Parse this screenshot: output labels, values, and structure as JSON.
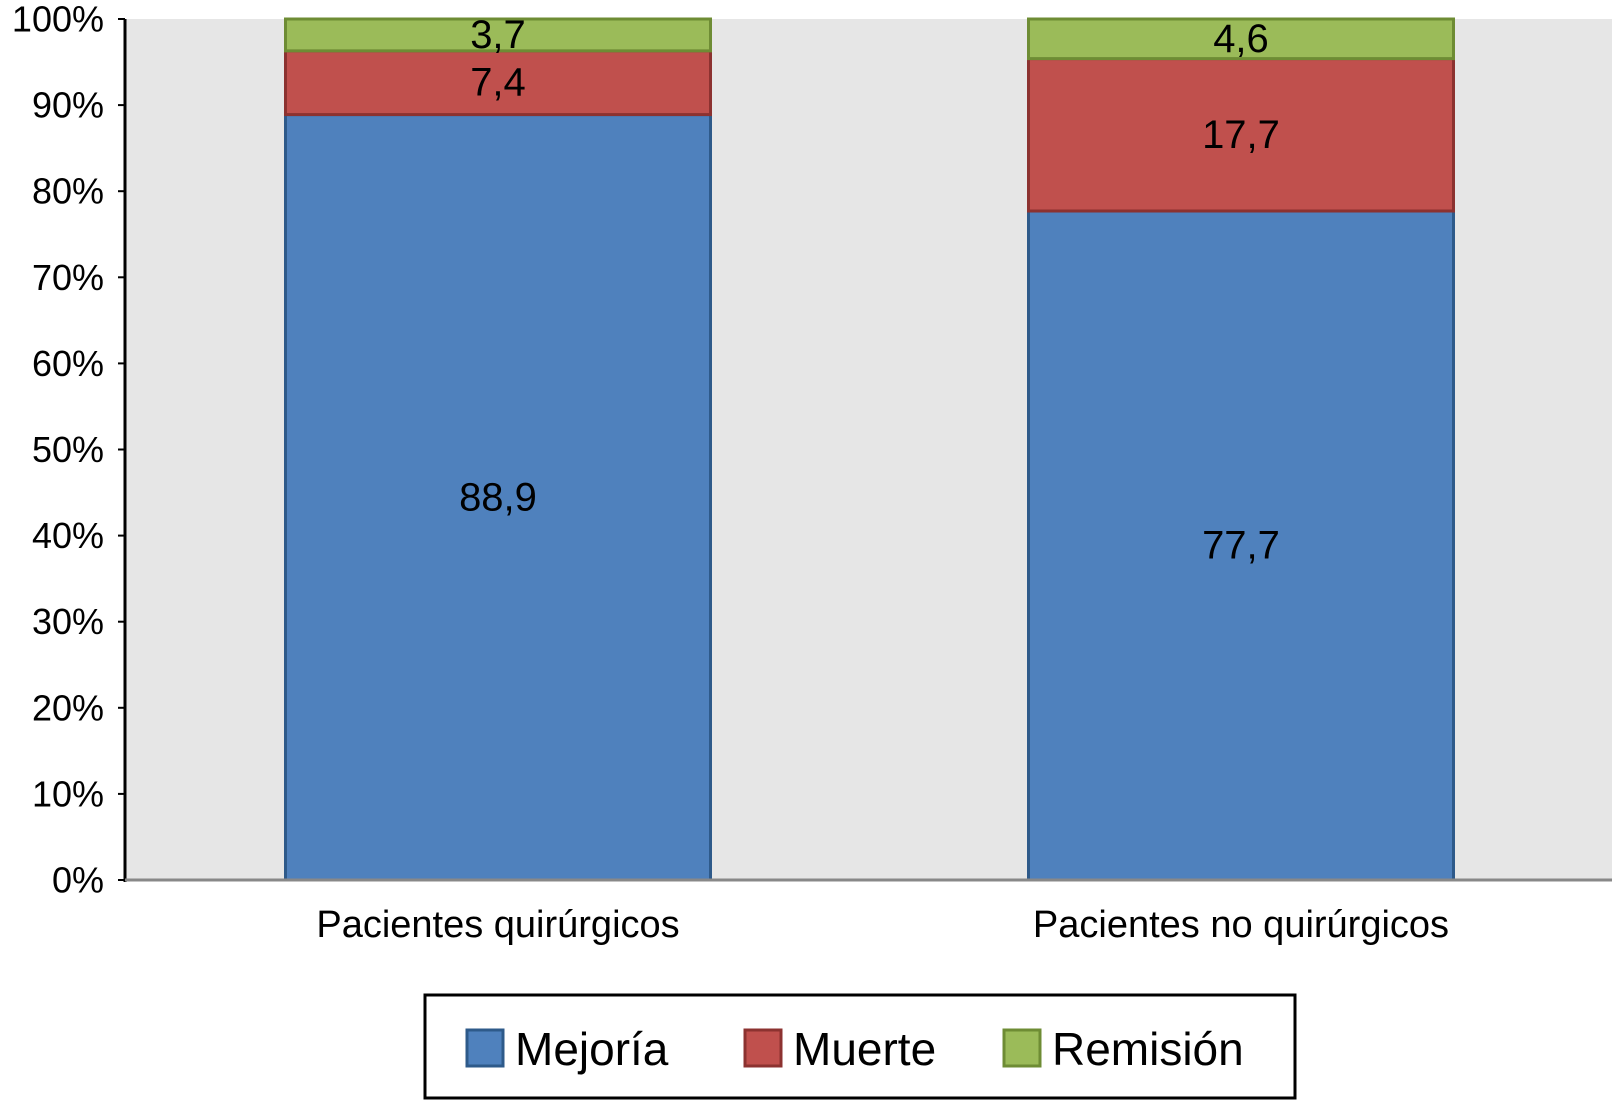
{
  "chart_data": {
    "type": "bar",
    "stacked": true,
    "percent_stacked": true,
    "categories": [
      "Pacientes quirúrgicos",
      "Pacientes no quirúrgicos"
    ],
    "series": [
      {
        "name": "Mejoría",
        "values": [
          88.9,
          77.7
        ],
        "labels": [
          "88,9",
          "77,7"
        ],
        "color": "#4F81BD",
        "border": "#2E5A8A"
      },
      {
        "name": "Muerte",
        "values": [
          7.4,
          17.7
        ],
        "labels": [
          "7,4",
          "17,7"
        ],
        "color": "#C0504D",
        "border": "#8C3230"
      },
      {
        "name": "Remisión",
        "values": [
          3.7,
          4.6
        ],
        "labels": [
          "3,7",
          "4,6"
        ],
        "color": "#9BBB59",
        "border": "#6E8C34"
      }
    ],
    "ylim": [
      0,
      100
    ],
    "yticks": [
      0,
      10,
      20,
      30,
      40,
      50,
      60,
      70,
      80,
      90,
      100
    ],
    "ytick_labels": [
      "0%",
      "10%",
      "20%",
      "30%",
      "40%",
      "50%",
      "60%",
      "70%",
      "80%",
      "90%",
      "100%"
    ],
    "plot_background": "#E6E6E6",
    "grid": false,
    "legend_position": "bottom"
  }
}
